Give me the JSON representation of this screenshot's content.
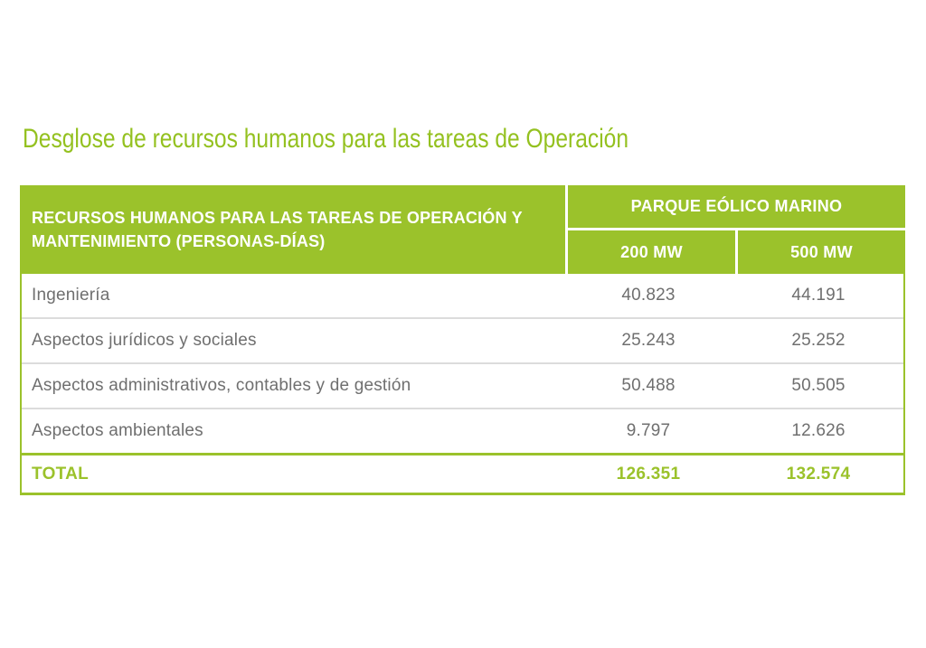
{
  "title": "Desglose de recursos humanos para las tareas de Operación",
  "colors": {
    "green": "#9bc22b",
    "title_green": "#94c120",
    "body_text": "#6f6f6f",
    "row_separator": "#dcdcdc",
    "header_text": "#ffffff"
  },
  "table": {
    "header": {
      "left": "RECURSOS HUMANOS PARA LAS TAREAS DE OPERACIÓN Y MANTENIMIENTO (PERSONAS-DÍAS)",
      "group": "PARQUE EÓLICO MARINO",
      "columns": [
        "200 MW",
        "500 MW"
      ]
    },
    "rows": [
      {
        "label": "Ingeniería",
        "values": [
          "40.823",
          "44.191"
        ]
      },
      {
        "label": "Aspectos jurídicos y sociales",
        "values": [
          "25.243",
          "25.252"
        ]
      },
      {
        "label": "Aspectos administrativos, contables y de gestión",
        "values": [
          "50.488",
          "50.505"
        ]
      },
      {
        "label": "Aspectos ambientales",
        "values": [
          "9.797",
          "12.626"
        ]
      }
    ],
    "total": {
      "label": "TOTAL",
      "values": [
        "126.351",
        "132.574"
      ]
    }
  }
}
